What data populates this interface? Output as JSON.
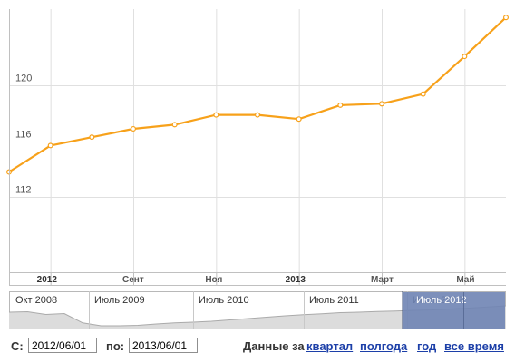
{
  "chart_data": {
    "type": "line",
    "title": "",
    "xlabel": "",
    "ylabel": "",
    "ylim": [
      106.6,
      125.5
    ],
    "ytick_values": [
      112,
      116,
      120
    ],
    "ytick_labels": [
      "112",
      "116",
      "120"
    ],
    "x_axis_ticks": [
      {
        "x": 1,
        "label": "2012",
        "bold": true
      },
      {
        "x": 3,
        "label": "Сент",
        "bold": false
      },
      {
        "x": 5,
        "label": "Ноя",
        "bold": false
      },
      {
        "x": 7,
        "label": "2013",
        "bold": true
      },
      {
        "x": 9,
        "label": "Март",
        "bold": false
      },
      {
        "x": 11,
        "label": "Май",
        "bold": false
      }
    ],
    "series": [
      {
        "color": "#f7a11a",
        "x": [
          0,
          1,
          2,
          3,
          4,
          5,
          6,
          7,
          8,
          9,
          10,
          11,
          12
        ],
        "values": [
          113.8,
          115.7,
          116.3,
          116.9,
          117.2,
          117.9,
          117.9,
          117.6,
          118.6,
          118.7,
          119.4,
          122.1,
          124.9
        ]
      }
    ],
    "grid": true,
    "colors": {
      "line": "#f7a11a",
      "grid": "#e0e0e0",
      "axis": "#c0c0c0"
    }
  },
  "navigator": {
    "labels": [
      "Окт 2008",
      "Июль 2009",
      "Июль 2010",
      "Июль 2011",
      "Июль 2012"
    ],
    "profile": [
      0.72,
      0.74,
      0.62,
      0.66,
      0.25,
      0.12,
      0.12,
      0.14,
      0.2,
      0.25,
      0.28,
      0.32,
      0.38,
      0.44,
      0.5,
      0.56,
      0.61,
      0.65,
      0.7,
      0.72,
      0.75,
      0.77,
      0.8,
      0.82,
      0.86,
      0.9,
      0.95,
      1.0
    ],
    "selected_start_fraction": 0.792,
    "colors": {
      "fill": "#dcdcdc",
      "line": "#aaaaaa",
      "selection": "#6f84b4"
    }
  },
  "controls": {
    "from_label": "С:",
    "from_value": "2012/06/01",
    "to_label": "по:",
    "to_value": "2013/06/01",
    "range_title": "Данные за",
    "ranges": [
      "квартал",
      "полгода",
      "год",
      "все время"
    ]
  }
}
